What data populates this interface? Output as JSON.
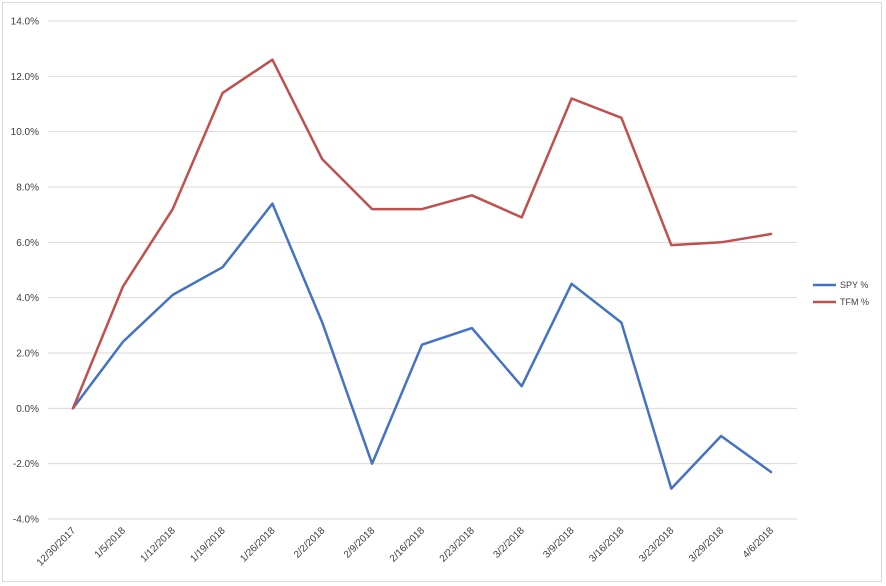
{
  "chart_data": {
    "type": "line",
    "title": "",
    "xlabel": "",
    "ylabel": "",
    "categories": [
      "12/30/2017",
      "1/5/2018",
      "1/12/2018",
      "1/19/2018",
      "1/26/2018",
      "2/2/2018",
      "2/9/2018",
      "2/16/2018",
      "2/23/2018",
      "3/2/2018",
      "3/9/2018",
      "3/16/2018",
      "3/23/2018",
      "3/29/2018",
      "4/6/2018"
    ],
    "y_ticks": [
      "-4.0%",
      "-2.0%",
      "0.0%",
      "2.0%",
      "4.0%",
      "6.0%",
      "8.0%",
      "10.0%",
      "12.0%",
      "14.0%"
    ],
    "ylim": [
      -4,
      14
    ],
    "y_step": 2,
    "grid": true,
    "legend_position": "right",
    "series": [
      {
        "name": "SPY %",
        "color": "#4472c4",
        "values": [
          0.0,
          2.4,
          4.1,
          5.1,
          7.4,
          3.1,
          -2.0,
          2.3,
          2.9,
          0.8,
          4.5,
          3.1,
          -2.9,
          -1.0,
          -2.3
        ]
      },
      {
        "name": "TFM %",
        "color": "#c0504d",
        "values": [
          0.0,
          4.4,
          7.2,
          11.4,
          12.6,
          9.0,
          7.2,
          7.2,
          7.7,
          6.9,
          11.2,
          10.5,
          5.9,
          6.0,
          6.3
        ]
      }
    ]
  }
}
